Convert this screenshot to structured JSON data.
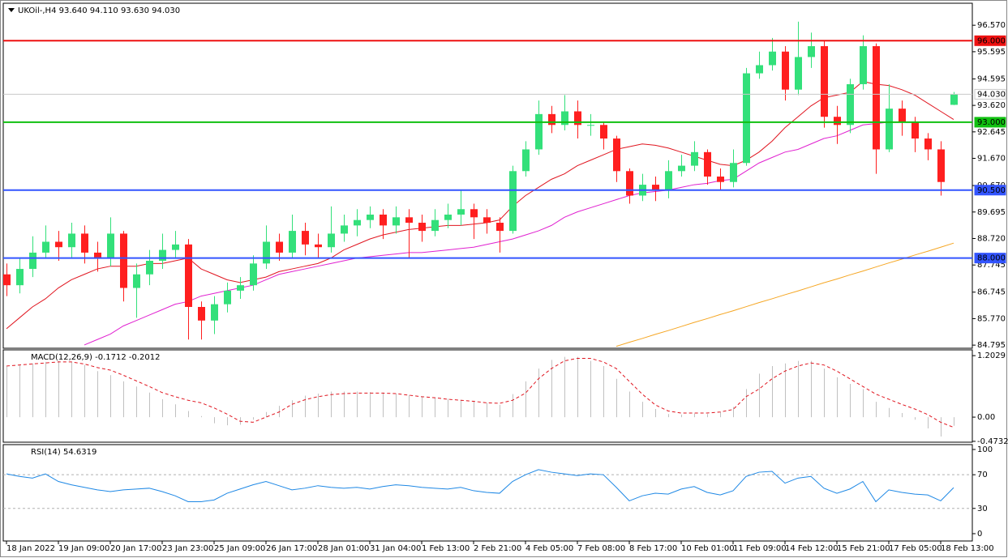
{
  "chart_data": [
    {
      "type": "candlestick",
      "title": "UKOil-,H4  93.640 94.110 93.630 94.030",
      "categories": [
        "18 Jan 2022",
        null,
        null,
        null,
        "19 Jan 09:00",
        null,
        null,
        null,
        "20 Jan 17:00",
        null,
        null,
        null,
        "23 Jan 23:00",
        null,
        null,
        null,
        "25 Jan 09:00",
        null,
        null,
        null,
        "26 Jan 17:00",
        null,
        null,
        null,
        "28 Jan 01:00",
        null,
        null,
        null,
        "31 Jan 04:00",
        null,
        null,
        null,
        "1 Feb 13:00",
        null,
        null,
        null,
        "2 Feb 21:00",
        null,
        null,
        null,
        "4 Feb 05:00",
        null,
        null,
        null,
        "7 Feb 08:00",
        null,
        null,
        null,
        "8 Feb 17:00",
        null,
        null,
        null,
        "10 Feb 01:00",
        null,
        null,
        null,
        "11 Feb 09:00",
        null,
        null,
        null,
        "14 Feb 12:00",
        null,
        null,
        null,
        "15 Feb 21:00",
        null,
        null,
        null,
        "17 Feb 05:00",
        null,
        null,
        null,
        "18 Feb 13:00",
        null
      ],
      "open": [
        87.4,
        87.0,
        87.6,
        88.2,
        88.6,
        88.4,
        88.9,
        88.2,
        88.0,
        88.9,
        86.9,
        87.4,
        87.9,
        88.3,
        88.5,
        86.2,
        85.7,
        86.3,
        86.8,
        87.0,
        87.8,
        88.6,
        88.2,
        89.0,
        88.5,
        88.4,
        88.9,
        89.2,
        89.4,
        89.6,
        89.2,
        89.5,
        89.3,
        89.0,
        89.4,
        89.6,
        89.8,
        89.5,
        89.3,
        89.0,
        91.2,
        92.0,
        93.3,
        92.9,
        93.4,
        92.9,
        92.9,
        92.4,
        91.2,
        90.3,
        90.7,
        90.5,
        91.2,
        91.4,
        91.9,
        91.0,
        90.8,
        91.5,
        94.8,
        95.1,
        95.6,
        94.2,
        95.4,
        95.8,
        93.2,
        92.9,
        94.4,
        95.8,
        92.0,
        93.5,
        93.0,
        92.4,
        92.0,
        93.64
      ],
      "high": [
        87.8,
        88.0,
        88.8,
        89.2,
        89.0,
        89.3,
        89.2,
        88.6,
        89.5,
        89.0,
        87.8,
        88.3,
        88.9,
        89.0,
        88.7,
        86.4,
        86.6,
        87.1,
        87.3,
        88.1,
        89.2,
        88.9,
        89.6,
        89.3,
        88.9,
        89.9,
        89.6,
        89.8,
        89.9,
        89.8,
        89.9,
        89.8,
        89.6,
        89.8,
        90.0,
        90.5,
        90.0,
        89.8,
        89.5,
        91.4,
        92.3,
        93.8,
        93.6,
        94.0,
        93.8,
        93.3,
        93.0,
        92.5,
        91.3,
        91.1,
        91.0,
        91.6,
        91.8,
        92.3,
        92.0,
        91.3,
        92.0,
        95.0,
        95.6,
        96.1,
        95.8,
        96.7,
        96.3,
        96.0,
        93.6,
        94.6,
        96.2,
        95.9,
        94.4,
        93.8,
        93.2,
        92.6,
        92.3,
        94.11
      ],
      "low": [
        86.6,
        86.7,
        87.3,
        88.0,
        87.9,
        88.0,
        87.8,
        87.5,
        87.7,
        86.4,
        85.8,
        87.0,
        87.6,
        88.0,
        85.0,
        85.0,
        85.2,
        86.0,
        86.5,
        86.8,
        87.6,
        87.9,
        88.0,
        88.1,
        88.0,
        88.2,
        88.6,
        88.8,
        89.1,
        88.7,
        88.9,
        88.0,
        88.6,
        88.8,
        89.1,
        89.2,
        88.7,
        88.9,
        88.2,
        88.9,
        91.0,
        91.8,
        92.6,
        92.7,
        92.4,
        92.5,
        92.0,
        90.8,
        90.0,
        90.1,
        90.1,
        90.2,
        91.0,
        91.2,
        90.7,
        90.5,
        90.6,
        91.4,
        94.6,
        94.9,
        93.8,
        94.0,
        95.0,
        92.8,
        92.2,
        92.6,
        94.2,
        91.1,
        91.9,
        92.5,
        91.9,
        91.6,
        90.3,
        93.63
      ],
      "close": [
        87.0,
        87.6,
        88.2,
        88.6,
        88.4,
        88.9,
        88.2,
        88.0,
        88.9,
        86.9,
        87.4,
        87.9,
        88.3,
        88.5,
        86.2,
        85.7,
        86.3,
        86.8,
        87.0,
        87.8,
        88.6,
        88.2,
        89.0,
        88.5,
        88.4,
        88.9,
        89.2,
        89.4,
        89.6,
        89.2,
        89.5,
        89.3,
        89.0,
        89.4,
        89.6,
        89.8,
        89.5,
        89.3,
        89.0,
        91.2,
        92.0,
        93.3,
        92.9,
        93.4,
        92.9,
        92.9,
        92.4,
        91.2,
        90.3,
        90.7,
        90.5,
        91.2,
        91.4,
        91.9,
        91.0,
        90.8,
        91.5,
        94.8,
        95.1,
        95.6,
        94.2,
        95.4,
        95.8,
        93.2,
        92.9,
        94.4,
        95.8,
        92.0,
        93.5,
        93.0,
        92.4,
        92.0,
        90.8,
        94.03
      ],
      "up_color": "#33e07a",
      "down_color": "#ff1f1f",
      "overlays": [
        {
          "color": "#e0151f",
          "values": [
            85.4,
            85.8,
            86.2,
            86.5,
            86.9,
            87.2,
            87.4,
            87.6,
            87.7,
            87.7,
            87.7,
            87.8,
            87.8,
            87.9,
            88.0,
            87.6,
            87.4,
            87.2,
            87.1,
            87.2,
            87.3,
            87.5,
            87.6,
            87.7,
            87.8,
            88.0,
            88.3,
            88.5,
            88.7,
            88.85,
            88.95,
            89.05,
            89.1,
            89.15,
            89.2,
            89.2,
            89.25,
            89.3,
            89.4,
            89.9,
            90.3,
            90.6,
            90.9,
            91.1,
            91.4,
            91.6,
            91.8,
            92.0,
            92.1,
            92.2,
            92.15,
            92.05,
            91.9,
            91.75,
            91.6,
            91.45,
            91.4,
            91.6,
            91.9,
            92.3,
            92.8,
            93.2,
            93.6,
            93.9,
            94.0,
            94.1,
            94.5,
            94.4,
            94.35,
            94.2,
            94.0,
            93.7,
            93.4,
            93.1
          ]
        },
        {
          "color": "#e020d0",
          "values": [
            null,
            null,
            null,
            null,
            null,
            null,
            84.8,
            85.0,
            85.2,
            85.5,
            85.7,
            85.9,
            86.1,
            86.3,
            86.4,
            86.6,
            86.7,
            86.8,
            86.9,
            87.0,
            87.2,
            87.4,
            87.5,
            87.6,
            87.7,
            87.8,
            87.9,
            88.0,
            88.05,
            88.1,
            88.15,
            88.2,
            88.2,
            88.25,
            88.3,
            88.35,
            88.4,
            88.5,
            88.6,
            88.7,
            88.85,
            89.0,
            89.2,
            89.5,
            89.7,
            89.85,
            90.0,
            90.15,
            90.3,
            90.4,
            90.45,
            90.5,
            90.6,
            90.7,
            90.75,
            90.85,
            90.9,
            91.2,
            91.5,
            91.7,
            91.9,
            92.0,
            92.2,
            92.4,
            92.5,
            92.7,
            92.9,
            92.95,
            93.0,
            93.0,
            93.0,
            93.0,
            93.0,
            93.0
          ]
        },
        {
          "color": "#f5a623",
          "values": [
            null,
            null,
            null,
            null,
            null,
            null,
            null,
            null,
            null,
            null,
            null,
            null,
            null,
            null,
            null,
            null,
            null,
            null,
            null,
            null,
            null,
            null,
            null,
            null,
            null,
            null,
            null,
            null,
            null,
            null,
            null,
            null,
            null,
            null,
            null,
            null,
            null,
            null,
            null,
            null,
            null,
            null,
            null,
            null,
            null,
            null,
            null,
            84.75,
            84.9,
            85.04,
            85.19,
            85.33,
            85.48,
            85.63,
            85.77,
            85.92,
            86.06,
            86.21,
            86.36,
            86.5,
            86.65,
            86.79,
            86.94,
            87.09,
            87.23,
            87.38,
            87.52,
            87.67,
            87.82,
            87.96,
            88.11,
            88.25,
            88.4,
            88.55
          ]
        }
      ],
      "levels": [
        {
          "value": 94.03,
          "label": "94.030",
          "color": "#c8c8c8",
          "text_color": "#000000"
        },
        {
          "value": 96,
          "label": "96.000",
          "color": "#ee1111",
          "text_color": "#ffffff"
        },
        {
          "value": 93,
          "label": "93.000",
          "color": "#10c010",
          "text_color": "#ffffff"
        },
        {
          "value": 90.5,
          "label": "90.500",
          "color": "#3355ff",
          "text_color": "#ffffff"
        },
        {
          "value": 88,
          "label": "88.000",
          "color": "#3355ff",
          "text_color": "#ffffff"
        }
      ],
      "ylim": [
        84.68,
        97.35
      ],
      "yticks": [
        {
          "value": 96.57,
          "label": "96.570"
        },
        {
          "value": 95.595,
          "label": "95.595"
        },
        {
          "value": 94.595,
          "label": "94.595"
        },
        {
          "value": 93.62,
          "label": "93.620"
        },
        {
          "value": 92.645,
          "label": "92.645"
        },
        {
          "value": 91.67,
          "label": "91.670"
        },
        {
          "value": 90.67,
          "label": "90.670"
        },
        {
          "value": 89.695,
          "label": "89.695"
        },
        {
          "value": 88.72,
          "label": "88.720"
        },
        {
          "value": 87.745,
          "label": "87.745"
        },
        {
          "value": 86.745,
          "label": "86.745"
        },
        {
          "value": 85.77,
          "label": "85.770"
        },
        {
          "value": 84.795,
          "label": "84.795"
        }
      ]
    },
    {
      "type": "macd",
      "title": "MACD(12,26,9) -0.1712 -0.2012",
      "values": [
        1.0,
        1.02,
        1.05,
        1.08,
        1.1,
        1.08,
        1.02,
        0.9,
        0.82,
        0.7,
        0.6,
        0.48,
        0.35,
        0.25,
        0.12,
        0.02,
        -0.12,
        -0.16,
        -0.15,
        -0.05,
        0.1,
        0.22,
        0.33,
        0.42,
        0.46,
        0.5,
        0.5,
        0.5,
        0.49,
        0.48,
        0.46,
        0.43,
        0.41,
        0.39,
        0.36,
        0.34,
        0.32,
        0.28,
        0.24,
        0.45,
        0.7,
        0.95,
        1.12,
        1.18,
        1.18,
        1.1,
        1.0,
        0.75,
        0.5,
        0.3,
        0.16,
        0.06,
        0.05,
        0.07,
        0.06,
        0.1,
        0.2,
        0.55,
        0.85,
        1.0,
        1.05,
        1.1,
        1.1,
        0.95,
        0.78,
        0.65,
        0.55,
        0.3,
        0.18,
        0.08,
        -0.05,
        -0.22,
        -0.38,
        -0.17
      ],
      "signal": [
        1.0,
        1.02,
        1.04,
        1.06,
        1.08,
        1.08,
        1.04,
        0.97,
        0.92,
        0.82,
        0.71,
        0.6,
        0.48,
        0.4,
        0.33,
        0.28,
        0.18,
        0.06,
        -0.08,
        -0.1,
        0.0,
        0.1,
        0.25,
        0.34,
        0.4,
        0.44,
        0.46,
        0.47,
        0.47,
        0.47,
        0.46,
        0.43,
        0.4,
        0.38,
        0.35,
        0.33,
        0.31,
        0.28,
        0.27,
        0.33,
        0.47,
        0.75,
        0.95,
        1.1,
        1.15,
        1.15,
        1.08,
        0.95,
        0.7,
        0.45,
        0.24,
        0.12,
        0.08,
        0.08,
        0.08,
        0.1,
        0.15,
        0.4,
        0.55,
        0.75,
        0.9,
        1.0,
        1.06,
        1.02,
        0.9,
        0.75,
        0.6,
        0.45,
        0.35,
        0.25,
        0.16,
        0.05,
        -0.1,
        -0.2
      ],
      "color": "#c0c0c0",
      "signal_color": "#e0151f",
      "ylim": [
        -0.49,
        1.3
      ],
      "yticks": [
        1.2029,
        {
          "value": 0,
          "label": "0.00"
        },
        -0.4732
      ]
    },
    {
      "type": "rsi",
      "title": "RSI(14) 54.6319",
      "values": [
        71,
        68,
        66,
        71,
        62,
        58,
        55,
        52,
        50,
        52,
        53,
        54,
        50,
        45,
        38,
        38,
        40,
        48,
        53,
        58,
        62,
        57,
        52,
        54,
        57,
        55,
        54,
        55,
        53,
        56,
        58,
        57,
        55,
        54,
        53,
        55,
        51,
        49,
        48,
        62,
        70,
        76,
        73,
        71,
        69,
        71,
        70,
        55,
        39,
        45,
        48,
        47,
        53,
        56,
        49,
        46,
        51,
        68,
        73,
        74,
        60,
        66,
        68,
        54,
        48,
        53,
        62,
        38,
        52,
        49,
        47,
        46,
        39,
        54.63
      ],
      "color": "#1e88e5",
      "guides": [
        70,
        30
      ],
      "ylim": [
        -8.7,
        104.8
      ],
      "yticks": [
        100,
        70,
        30,
        0
      ]
    }
  ]
}
